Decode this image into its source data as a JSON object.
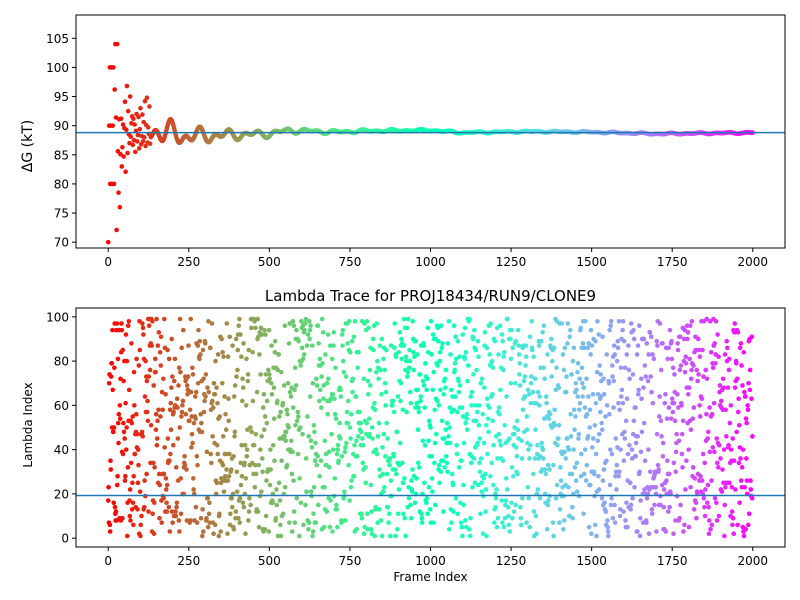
{
  "chart_data": [
    {
      "type": "scatter",
      "title": "",
      "xlabel": "",
      "ylabel": "ΔG (kT)",
      "xlim": [
        -100,
        2100
      ],
      "ylim": [
        69,
        109
      ],
      "xticks": [
        0,
        250,
        500,
        750,
        1000,
        1250,
        1500,
        1750,
        2000
      ],
      "yticks": [
        70,
        75,
        80,
        85,
        90,
        95,
        100,
        105
      ],
      "hline": 88.8,
      "hline_color": "#1f77b4",
      "colormap": "rainbow",
      "grid": false,
      "legend": "none",
      "x_max": 2000,
      "early_points": [
        [
          0,
          70.0
        ],
        [
          3,
          90.0
        ],
        [
          5,
          100.0
        ],
        [
          6,
          80.0
        ],
        [
          8,
          90.0
        ],
        [
          10,
          100.0
        ],
        [
          12,
          80.0
        ],
        [
          14,
          90.0
        ],
        [
          16,
          100.0
        ],
        [
          18,
          80.0
        ],
        [
          20,
          96.2
        ],
        [
          22,
          104.0
        ],
        [
          24,
          91.4
        ],
        [
          26,
          72.1
        ],
        [
          28,
          104.0
        ],
        [
          30,
          85.6
        ],
        [
          32,
          78.5
        ],
        [
          34,
          91.1
        ],
        [
          36,
          76.0
        ],
        [
          38,
          85.1
        ],
        [
          40,
          91.2
        ],
        [
          42,
          83.0
        ],
        [
          44,
          86.3
        ],
        [
          46,
          90.2
        ],
        [
          48,
          84.7
        ],
        [
          50,
          89.6
        ],
        [
          52,
          94.1
        ],
        [
          54,
          82.1
        ],
        [
          56,
          89.3
        ],
        [
          58,
          96.8
        ],
        [
          60,
          85.3
        ],
        [
          62,
          92.5
        ],
        [
          64,
          88.5
        ],
        [
          66,
          87.0
        ],
        [
          68,
          95.0
        ],
        [
          70,
          88.1
        ],
        [
          72,
          90.4
        ],
        [
          74,
          91.6
        ],
        [
          76,
          86.7
        ],
        [
          78,
          91.2
        ],
        [
          80,
          87.5
        ],
        [
          82,
          90.2
        ],
        [
          84,
          85.5
        ],
        [
          86,
          89.1
        ],
        [
          88,
          92.0
        ],
        [
          90,
          87.3
        ],
        [
          92,
          88.4
        ],
        [
          94,
          91.5
        ],
        [
          96,
          86.1
        ],
        [
          98,
          89.4
        ],
        [
          100,
          93.0
        ],
        [
          102,
          86.8
        ],
        [
          104,
          88.2
        ],
        [
          106,
          91.9
        ],
        [
          108,
          87.3
        ],
        [
          110,
          90.6
        ],
        [
          112,
          88.0
        ],
        [
          114,
          94.2
        ],
        [
          116,
          86.5
        ],
        [
          118,
          90.1
        ],
        [
          120,
          94.8
        ],
        [
          122,
          87.1
        ],
        [
          124,
          89.7
        ],
        [
          126,
          88.6
        ],
        [
          128,
          93.3
        ],
        [
          130,
          86.9
        ]
      ],
      "wave": {
        "from": 130,
        "to": 2000,
        "base": 88.9,
        "amp_start": 3.2,
        "amp_end": 0.15,
        "step": 2
      },
      "wave_anchors": [
        [
          130,
          89.4
        ],
        [
          240,
          88.2
        ],
        [
          500,
          88.6
        ],
        [
          560,
          89.2
        ],
        [
          700,
          88.9
        ],
        [
          800,
          89.1
        ],
        [
          1000,
          89.2
        ],
        [
          1100,
          88.8
        ],
        [
          1300,
          89.0
        ],
        [
          1500,
          88.9
        ],
        [
          1700,
          88.6
        ],
        [
          2000,
          88.8
        ]
      ]
    },
    {
      "type": "scatter",
      "title": "Lambda Trace for PROJ18434/RUN9/CLONE9",
      "xlabel": "Frame Index",
      "ylabel": "Lambda Index",
      "xlim": [
        -100,
        2100
      ],
      "ylim": [
        -4,
        104
      ],
      "xticks": [
        0,
        250,
        500,
        750,
        1000,
        1250,
        1500,
        1750,
        2000
      ],
      "yticks": [
        0,
        20,
        40,
        60,
        80,
        100
      ],
      "hline": 19.3,
      "hline_color": "#1f77b4",
      "colormap": "rainbow",
      "grid": false,
      "legend": "none",
      "n_points": 2000,
      "x_max": 2000,
      "lambda_range": [
        1,
        99
      ],
      "seed": 18434
    }
  ]
}
